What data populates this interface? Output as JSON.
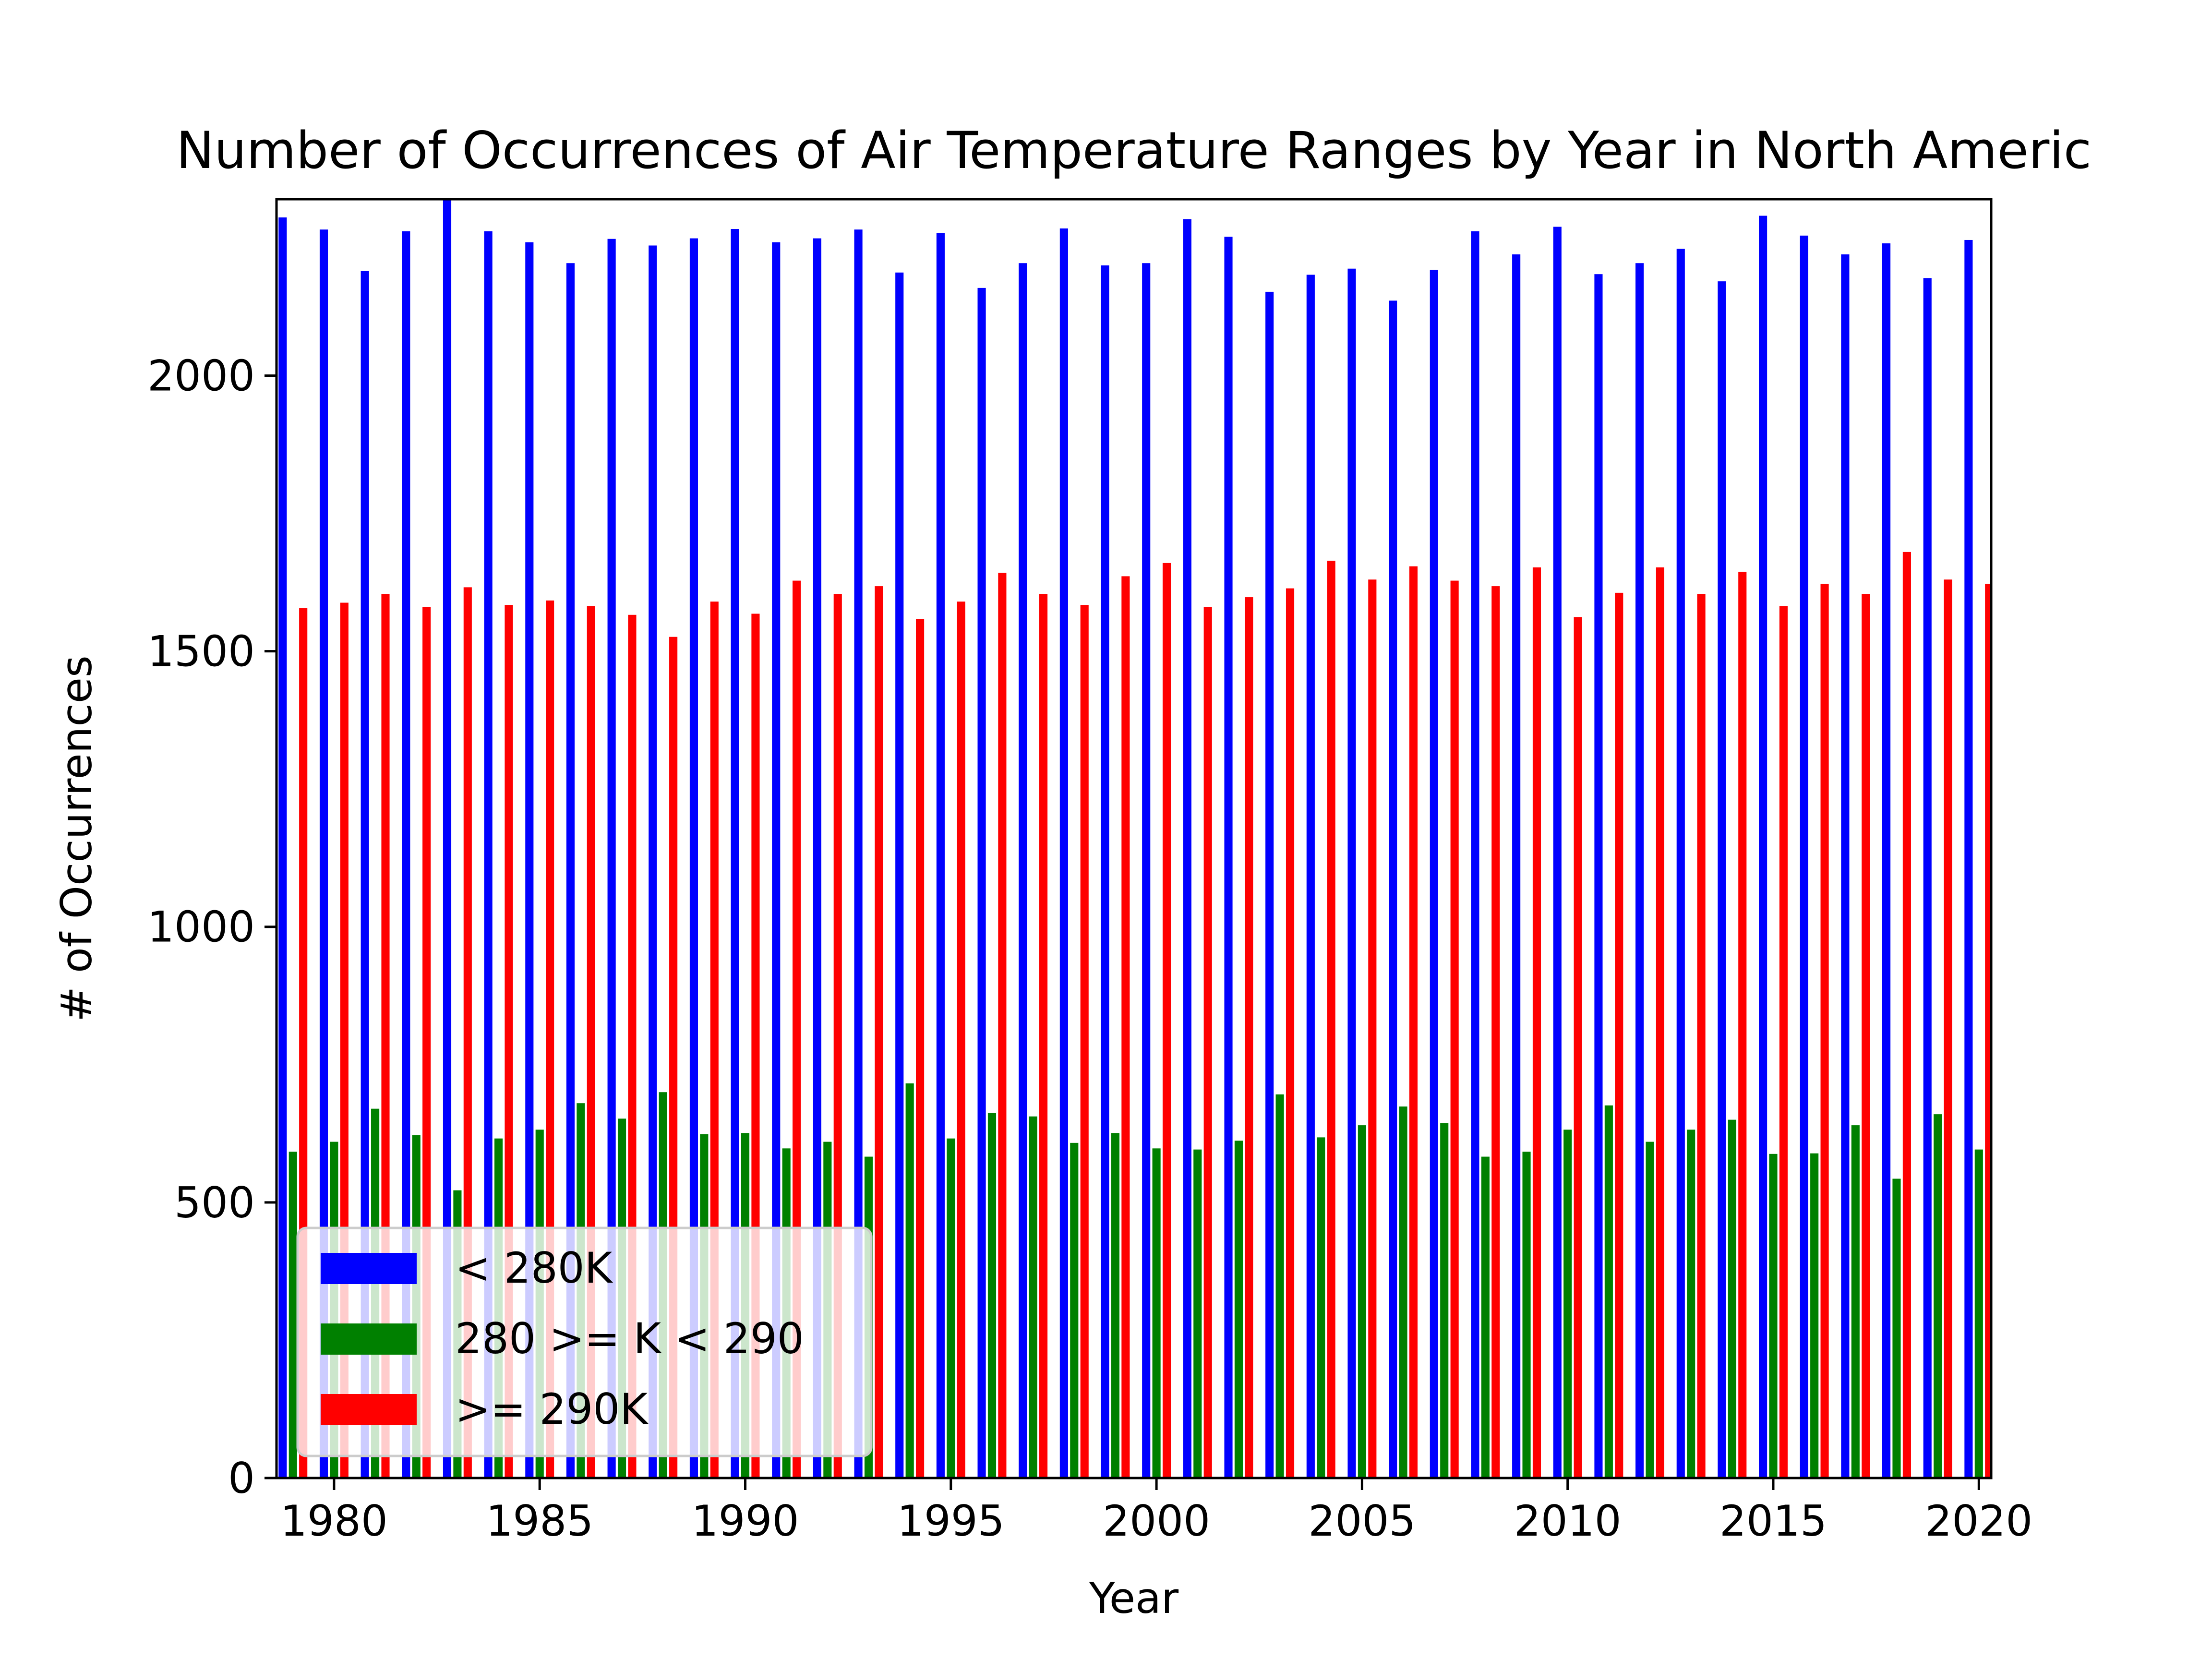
{
  "chart_data": {
    "type": "bar",
    "title": "Number of Occurrences of Air Temperature Ranges by Year in North Americ",
    "xlabel": "Year",
    "ylabel": "# of Occurrences",
    "xlim": [
      1978.6,
      2020.3
    ],
    "ylim": [
      0,
      2320
    ],
    "x_ticks": [
      1980,
      1985,
      1990,
      1995,
      2000,
      2005,
      2010,
      2015,
      2020
    ],
    "y_ticks": [
      0,
      500,
      1000,
      1500,
      2000
    ],
    "legend_position": "lower-left",
    "x": [
      1979,
      1980,
      1981,
      1982,
      1983,
      1984,
      1985,
      1986,
      1987,
      1988,
      1989,
      1990,
      1991,
      1992,
      1993,
      1994,
      1995,
      1996,
      1997,
      1998,
      1999,
      2000,
      2001,
      2002,
      2003,
      2004,
      2005,
      2006,
      2007,
      2008,
      2009,
      2010,
      2011,
      2012,
      2013,
      2014,
      2015,
      2016,
      2017,
      2018,
      2019,
      2020
    ],
    "series": [
      {
        "name": "< 280K",
        "color": "#0000ff",
        "values": [
          2287,
          2265,
          2190,
          2262,
          2335,
          2262,
          2242,
          2204,
          2248,
          2236,
          2249,
          2266,
          2242,
          2249,
          2265,
          2187,
          2259,
          2159,
          2204,
          2267,
          2200,
          2204,
          2284,
          2252,
          2152,
          2183,
          2194,
          2136,
          2192,
          2262,
          2220,
          2270,
          2184,
          2204,
          2230,
          2171,
          2290,
          2254,
          2220,
          2240,
          2177,
          2246
        ]
      },
      {
        "name": "280 >= K < 290",
        "color": "#008000",
        "values": [
          592,
          610,
          670,
          622,
          522,
          616,
          632,
          680,
          652,
          700,
          624,
          626,
          598,
          610,
          583,
          716,
          616,
          662,
          656,
          608,
          626,
          598,
          596,
          612,
          696,
          618,
          640,
          674,
          644,
          583,
          592,
          632,
          676,
          610,
          632,
          650,
          588,
          589,
          640,
          543,
          660,
          596
        ]
      },
      {
        "name": ">= 290K",
        "color": "#ff0000",
        "values": [
          1578,
          1588,
          1604,
          1580,
          1616,
          1584,
          1592,
          1582,
          1566,
          1526,
          1590,
          1568,
          1628,
          1604,
          1618,
          1558,
          1590,
          1642,
          1604,
          1584,
          1636,
          1660,
          1580,
          1598,
          1614,
          1664,
          1630,
          1654,
          1628,
          1618,
          1652,
          1562,
          1606,
          1652,
          1604,
          1644,
          1582,
          1622,
          1604,
          1680,
          1630,
          1622
        ]
      }
    ]
  }
}
